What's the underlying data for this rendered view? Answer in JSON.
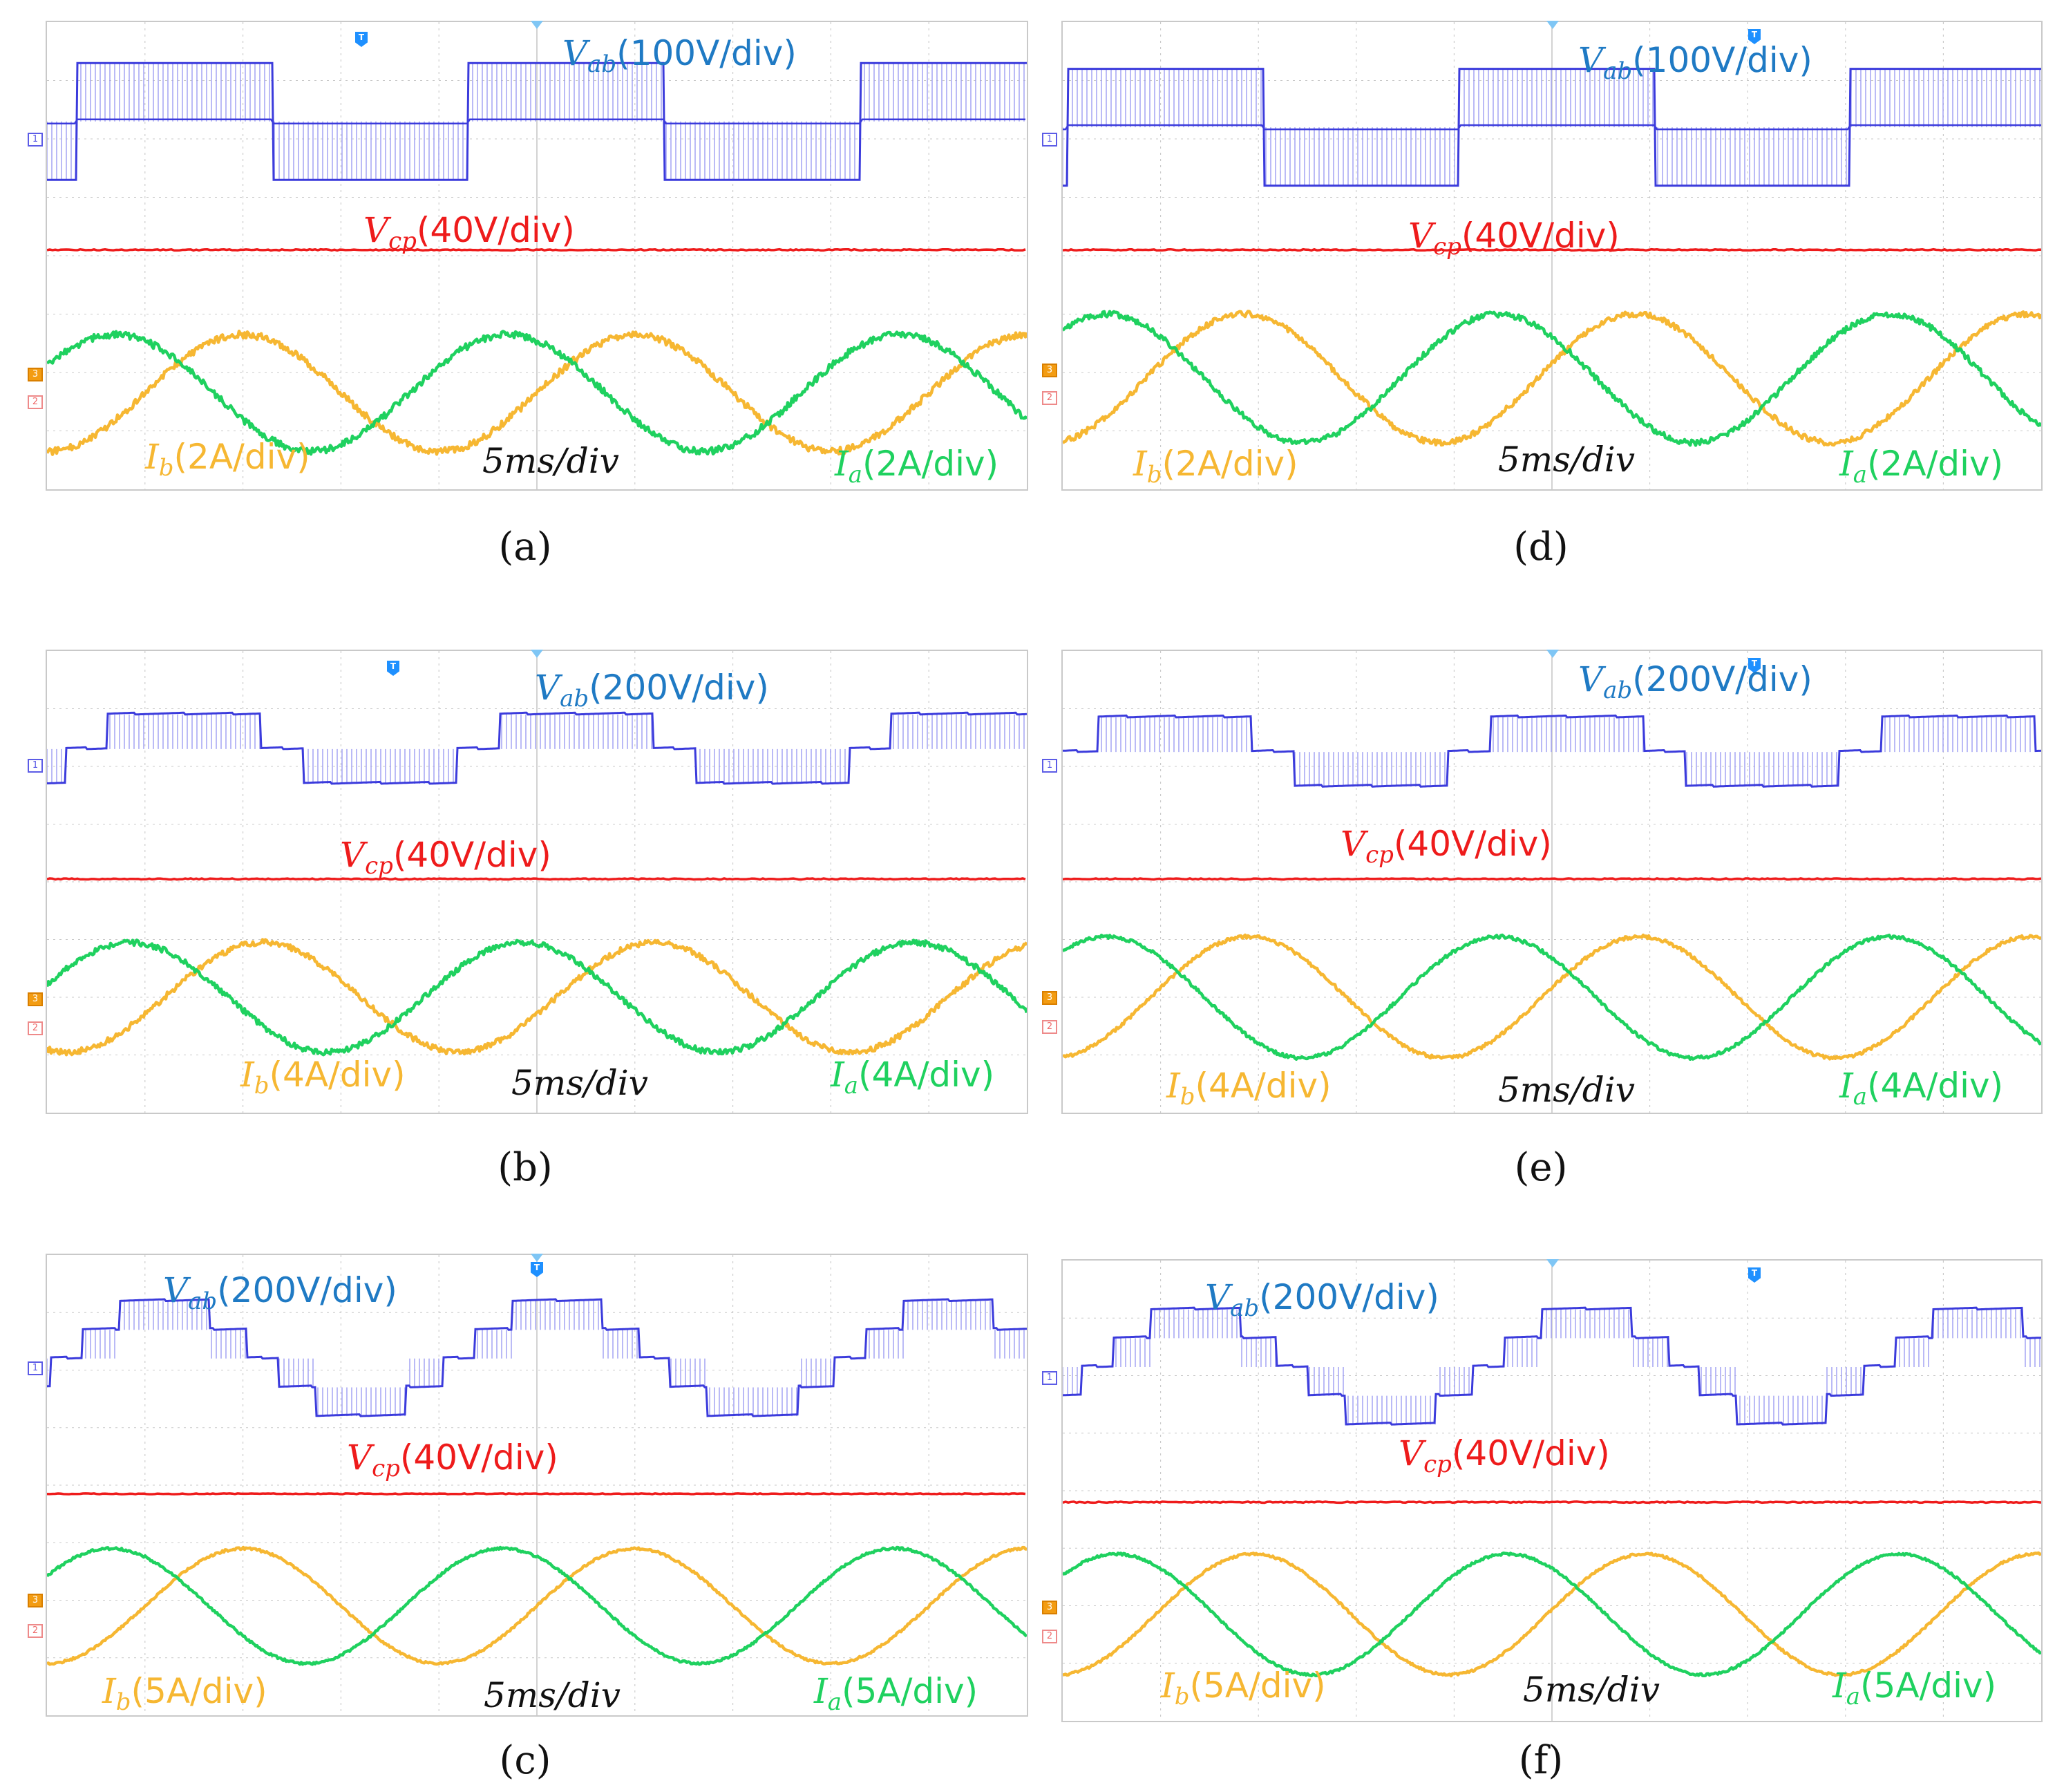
{
  "colors": {
    "vab_label": "#1f7ac4",
    "vab_trace": "#3b3bdc",
    "vab_fill": "#9b9bf2",
    "vcp": "#ee1b1b",
    "ib": "#f6b732",
    "ia": "#1fd15f",
    "grid": "#c8c8c8",
    "time": "#111111"
  },
  "chart_data": [
    {
      "id": "a",
      "type": "line",
      "caption": "(a)",
      "labels": {
        "vab_sub": "ab",
        "vab_scale": "(100V/div)",
        "vcp_sub": "cp",
        "vcp_scale": "(40V/div)",
        "ib_sub": "b",
        "ib_scale": "(2A/div)",
        "ia_sub": "a",
        "ia_scale": "(2A/div)",
        "time": "5ms/div"
      },
      "grid": {
        "hdiv": 10,
        "vdiv": 8
      },
      "vab": {
        "style": "bipolar",
        "center_div": 1.7,
        "amp_div": 1.0,
        "period_div": 4.0,
        "phase_div": 0.3
      },
      "vcp": {
        "level_div": 3.9,
        "noise_div": 0.02
      },
      "ia": {
        "center_div": 6.35,
        "amp_div": 1.0,
        "period_div": 4.0,
        "phase_div": -0.3,
        "noise_div": 0.06
      },
      "ib": {
        "center_div": 6.35,
        "amp_div": 1.0,
        "period_div": 4.0,
        "phase_div": 1.0,
        "noise_div": 0.06
      }
    },
    {
      "id": "b",
      "type": "line",
      "caption": "(b)",
      "labels": {
        "vab_sub": "ab",
        "vab_scale": "(200V/div)",
        "vcp_sub": "cp",
        "vcp_scale": "(40V/div)",
        "ib_sub": "b",
        "ib_scale": "(4A/div)",
        "ia_sub": "a",
        "ia_scale": "(4A/div)",
        "time": "5ms/div"
      },
      "grid": {
        "hdiv": 10,
        "vdiv": 8
      },
      "vab": {
        "style": "multilevel3",
        "center_div": 1.7,
        "amp_div": 0.9,
        "period_div": 4.0,
        "phase_div": 0.4
      },
      "vcp": {
        "level_div": 3.95,
        "noise_div": 0.02
      },
      "ia": {
        "center_div": 6.0,
        "amp_div": 0.95,
        "period_div": 4.0,
        "phase_div": -0.15,
        "noise_div": 0.05
      },
      "ib": {
        "center_div": 6.0,
        "amp_div": 0.95,
        "period_div": 4.0,
        "phase_div": 1.2,
        "noise_div": 0.05
      }
    },
    {
      "id": "c",
      "type": "line",
      "caption": "(c)",
      "labels": {
        "vab_sub": "ab",
        "vab_scale": "(200V/div)",
        "vcp_sub": "cp",
        "vcp_scale": "(40V/div)",
        "ib_sub": "b",
        "ib_scale": "(5A/div)",
        "ia_sub": "a",
        "ia_scale": "(5A/div)",
        "time": "5ms/div"
      },
      "grid": {
        "hdiv": 10,
        "vdiv": 8
      },
      "vab": {
        "style": "multilevel5",
        "center_div": 1.8,
        "amp_div": 1.0,
        "period_div": 4.0,
        "phase_div": 0.2
      },
      "vcp": {
        "level_div": 4.15,
        "noise_div": 0.015
      },
      "ia": {
        "center_div": 6.1,
        "amp_div": 1.0,
        "period_div": 4.0,
        "phase_div": -0.35,
        "noise_div": 0.02
      },
      "ib": {
        "center_div": 6.1,
        "amp_div": 1.0,
        "period_div": 4.0,
        "phase_div": 1.0,
        "noise_div": 0.02
      }
    },
    {
      "id": "d",
      "type": "line",
      "caption": "(d)",
      "labels": {
        "vab_sub": "ab",
        "vab_scale": "(100V/div)",
        "vcp_sub": "cp",
        "vcp_scale": "(40V/div)",
        "ib_sub": "b",
        "ib_scale": "(2A/div)",
        "ia_sub": "a",
        "ia_scale": "(2A/div)",
        "time": "5ms/div"
      },
      "grid": {
        "hdiv": 10,
        "vdiv": 8
      },
      "vab": {
        "style": "bipolar",
        "center_div": 1.8,
        "amp_div": 1.0,
        "period_div": 4.0,
        "phase_div": 0.05
      },
      "vcp": {
        "level_div": 3.9,
        "noise_div": 0.02
      },
      "ia": {
        "center_div": 6.1,
        "amp_div": 1.1,
        "period_div": 4.0,
        "phase_div": -0.55,
        "noise_div": 0.05
      },
      "ib": {
        "center_div": 6.1,
        "amp_div": 1.1,
        "period_div": 4.0,
        "phase_div": 0.85,
        "noise_div": 0.05
      }
    },
    {
      "id": "e",
      "type": "line",
      "caption": "(e)",
      "labels": {
        "vab_sub": "ab",
        "vab_scale": "(200V/div)",
        "vcp_sub": "cp",
        "vcp_scale": "(40V/div)",
        "ib_sub": "b",
        "ib_scale": "(4A/div)",
        "ia_sub": "a",
        "ia_scale": "(4A/div)",
        "time": "5ms/div"
      },
      "grid": {
        "hdiv": 10,
        "vdiv": 8
      },
      "vab": {
        "style": "multilevel3",
        "center_div": 1.75,
        "amp_div": 0.9,
        "period_div": 4.0,
        "phase_div": 0.15
      },
      "vcp": {
        "level_div": 3.95,
        "noise_div": 0.02
      },
      "ia": {
        "center_div": 6.0,
        "amp_div": 1.05,
        "period_div": 4.0,
        "phase_div": -0.55,
        "noise_div": 0.03
      },
      "ib": {
        "center_div": 6.0,
        "amp_div": 1.05,
        "period_div": 4.0,
        "phase_div": 0.9,
        "noise_div": 0.03
      }
    },
    {
      "id": "f",
      "type": "line",
      "caption": "(f)",
      "labels": {
        "vab_sub": "ab",
        "vab_scale": "(200V/div)",
        "vcp_sub": "cp",
        "vcp_scale": "(40V/div)",
        "ib_sub": "b",
        "ib_scale": "(5A/div)",
        "ia_sub": "a",
        "ia_scale": "(5A/div)",
        "time": "5ms/div"
      },
      "grid": {
        "hdiv": 10,
        "vdiv": 8
      },
      "vab": {
        "style": "multilevel5",
        "center_div": 1.85,
        "amp_div": 1.0,
        "period_div": 4.0,
        "phase_div": 0.35
      },
      "vcp": {
        "level_div": 4.2,
        "noise_div": 0.02
      },
      "ia": {
        "center_div": 6.15,
        "amp_div": 1.05,
        "period_div": 4.0,
        "phase_div": -0.45,
        "noise_div": 0.02
      },
      "ib": {
        "center_div": 6.15,
        "amp_div": 1.05,
        "period_div": 4.0,
        "phase_div": 0.95,
        "noise_div": 0.02
      }
    }
  ]
}
